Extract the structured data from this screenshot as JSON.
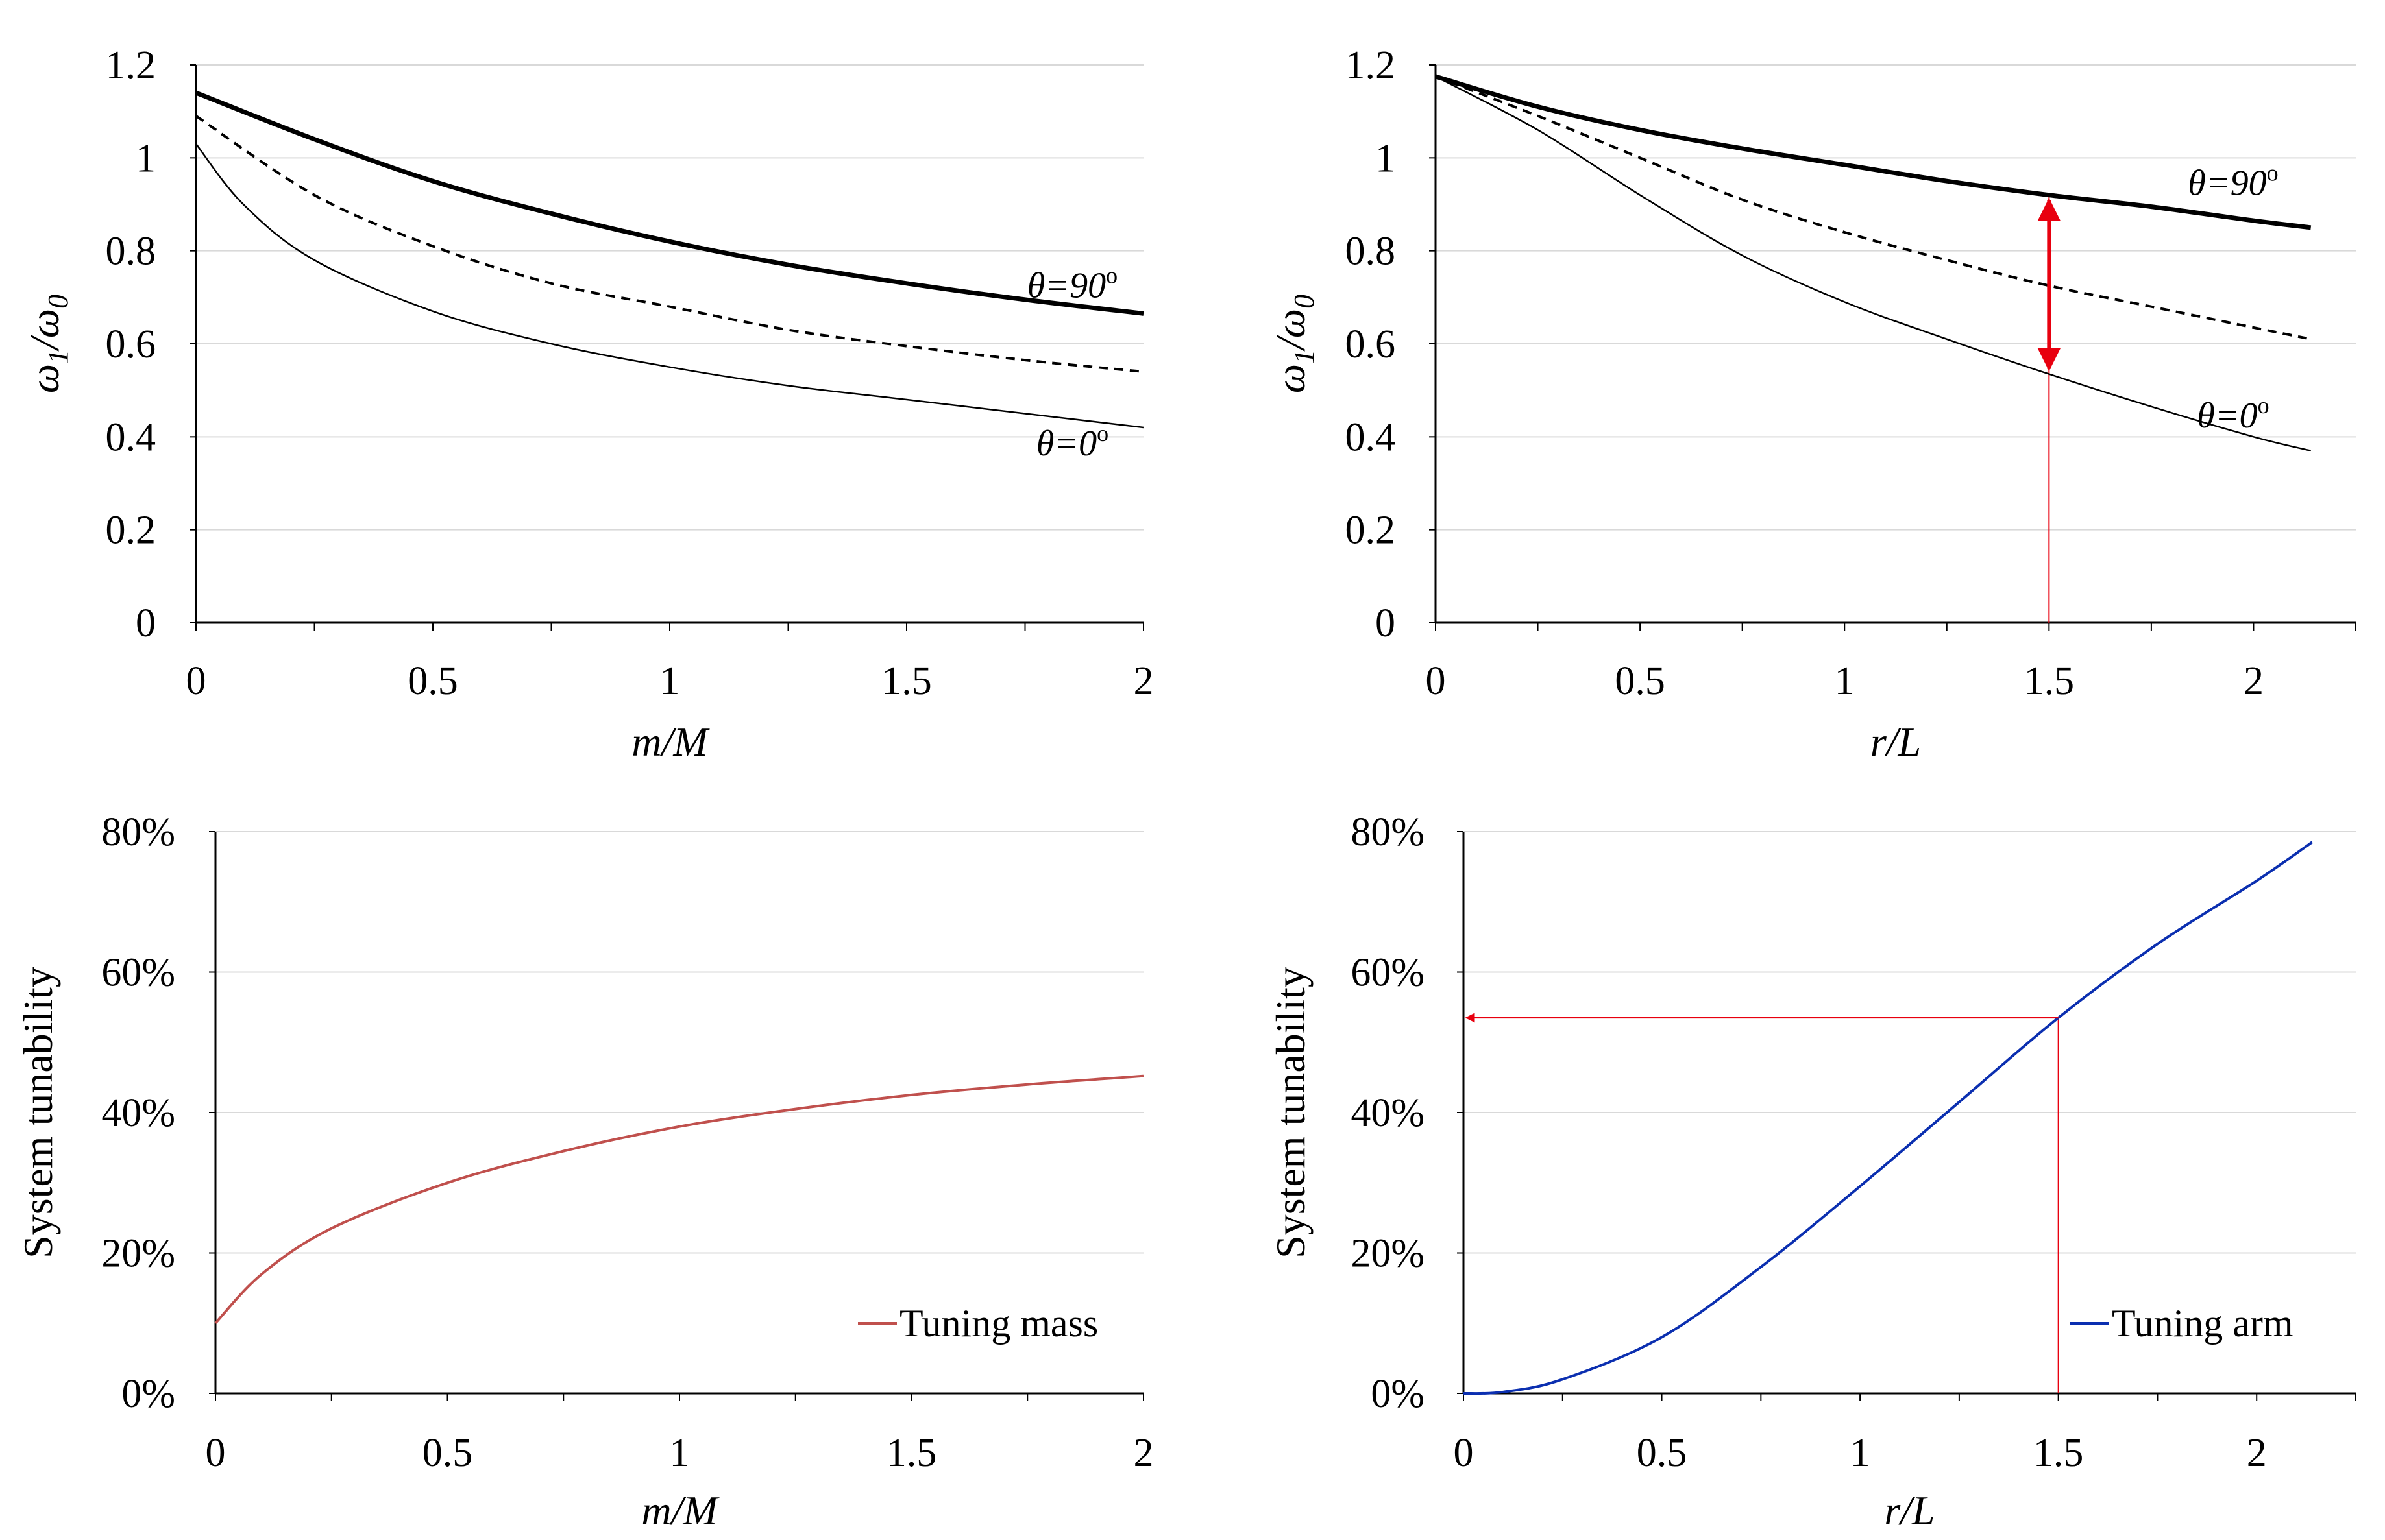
{
  "chart_data": [
    {
      "type": "line",
      "xlabel": "m/M",
      "ylabel": "ω1/ω0",
      "xlim": [
        0,
        2
      ],
      "ylim": [
        0,
        1.2
      ],
      "x_ticks": [
        "0",
        "0.5",
        "1",
        "1.5",
        "2"
      ],
      "y_ticks": [
        "0",
        "0.2",
        "0.4",
        "0.6",
        "0.8",
        "1",
        "1.2"
      ],
      "grid": "horizontal",
      "series": [
        {
          "style": "solid-thick",
          "x": [
            0,
            0.25,
            0.5,
            0.75,
            1,
            1.25,
            1.5,
            1.75,
            2
          ],
          "y": [
            1.14,
            1.04,
            0.95,
            0.88,
            0.82,
            0.77,
            0.73,
            0.695,
            0.665
          ]
        },
        {
          "style": "dashed",
          "x": [
            0,
            0.25,
            0.5,
            0.75,
            1,
            1.25,
            1.5,
            1.75,
            2
          ],
          "y": [
            1.09,
            0.92,
            0.81,
            0.73,
            0.68,
            0.63,
            0.595,
            0.565,
            0.54
          ]
        },
        {
          "style": "solid-thin",
          "x": [
            0,
            0.1,
            0.25,
            0.5,
            0.75,
            1,
            1.25,
            1.5,
            1.75,
            2
          ],
          "y": [
            1.03,
            0.9,
            0.78,
            0.67,
            0.6,
            0.55,
            0.51,
            0.48,
            0.45,
            0.42
          ]
        }
      ],
      "annotations": [
        {
          "text": "θ=90",
          "sup": "o",
          "x": 1.85,
          "y": 0.7
        },
        {
          "text": "θ=0",
          "sup": "o",
          "x": 1.85,
          "y": 0.36
        }
      ]
    },
    {
      "type": "line",
      "xlabel": "r/L",
      "ylabel": "ω1/ω0",
      "xlim": [
        0,
        2.25
      ],
      "ylim": [
        0,
        1.2
      ],
      "x_ticks": [
        "0",
        "0.5",
        "1",
        "1.5",
        "2"
      ],
      "y_ticks": [
        "0",
        "0.2",
        "0.4",
        "0.6",
        "0.8",
        "1",
        "1.2"
      ],
      "grid": "horizontal",
      "series": [
        {
          "style": "solid-thick",
          "x": [
            0,
            0.25,
            0.5,
            0.75,
            1,
            1.25,
            1.5,
            1.75,
            2,
            2.14
          ],
          "y": [
            1.175,
            1.11,
            1.06,
            1.02,
            0.985,
            0.95,
            0.92,
            0.895,
            0.865,
            0.85
          ]
        },
        {
          "style": "dashed",
          "x": [
            0,
            0.25,
            0.5,
            0.75,
            1,
            1.25,
            1.5,
            1.75,
            2,
            2.14
          ],
          "y": [
            1.175,
            1.09,
            1.0,
            0.91,
            0.84,
            0.78,
            0.725,
            0.68,
            0.635,
            0.61
          ]
        },
        {
          "style": "solid-thin",
          "x": [
            0,
            0.25,
            0.5,
            0.75,
            1,
            1.25,
            1.5,
            1.75,
            2,
            2.14
          ],
          "y": [
            1.175,
            1.06,
            0.92,
            0.79,
            0.69,
            0.61,
            0.535,
            0.465,
            0.4,
            0.37
          ]
        }
      ],
      "markers": [
        {
          "type": "vertical-line",
          "x": 1.5,
          "color": "#e8000f"
        },
        {
          "type": "double-arrow",
          "x": 1.5,
          "y_from": 0.92,
          "y_to": 0.535,
          "color": "#e8000f"
        }
      ],
      "annotations": [
        {
          "text": "θ=90",
          "sup": "o",
          "x": 1.95,
          "y": 0.92
        },
        {
          "text": "θ=0",
          "sup": "o",
          "x": 1.95,
          "y": 0.42
        }
      ]
    },
    {
      "type": "line",
      "xlabel": "m/M",
      "ylabel": "System tunability",
      "xlim": [
        0,
        2
      ],
      "ylim": [
        0,
        0.8
      ],
      "x_ticks": [
        "0",
        "0.5",
        "1",
        "1.5",
        "2"
      ],
      "y_ticks": [
        "0%",
        "20%",
        "40%",
        "60%",
        "80%"
      ],
      "grid": "horizontal",
      "legend_position": "bottom-right",
      "series": [
        {
          "name": "Tuning mass",
          "color": "#c0504d",
          "x": [
            0,
            0.1,
            0.25,
            0.5,
            0.75,
            1,
            1.25,
            1.5,
            1.75,
            2
          ],
          "y": [
            0.1,
            0.17,
            0.235,
            0.3,
            0.345,
            0.38,
            0.405,
            0.425,
            0.44,
            0.452
          ]
        }
      ]
    },
    {
      "type": "line",
      "xlabel": "r/L",
      "ylabel": "System tunability",
      "xlim": [
        0,
        2.25
      ],
      "ylim": [
        0,
        0.8
      ],
      "x_ticks": [
        "0",
        "0.5",
        "1",
        "1.5",
        "2"
      ],
      "y_ticks": [
        "0%",
        "20%",
        "40%",
        "60%",
        "80%"
      ],
      "grid": "horizontal",
      "legend_position": "bottom-right",
      "series": [
        {
          "name": "Tuning arm",
          "color": "#0b2fb0",
          "x": [
            0,
            0.1,
            0.25,
            0.5,
            0.75,
            1,
            1.25,
            1.5,
            1.75,
            2,
            2.14
          ],
          "y": [
            0,
            0.002,
            0.02,
            0.08,
            0.18,
            0.295,
            0.415,
            0.535,
            0.64,
            0.73,
            0.785
          ]
        }
      ],
      "markers": [
        {
          "type": "vertical-line",
          "x": 1.5,
          "y_to": 0.535,
          "color": "#e8000f"
        },
        {
          "type": "horizontal-arrow",
          "y": 0.535,
          "x_from": 1.5,
          "x_to": 0,
          "color": "#e8000f"
        }
      ]
    }
  ]
}
